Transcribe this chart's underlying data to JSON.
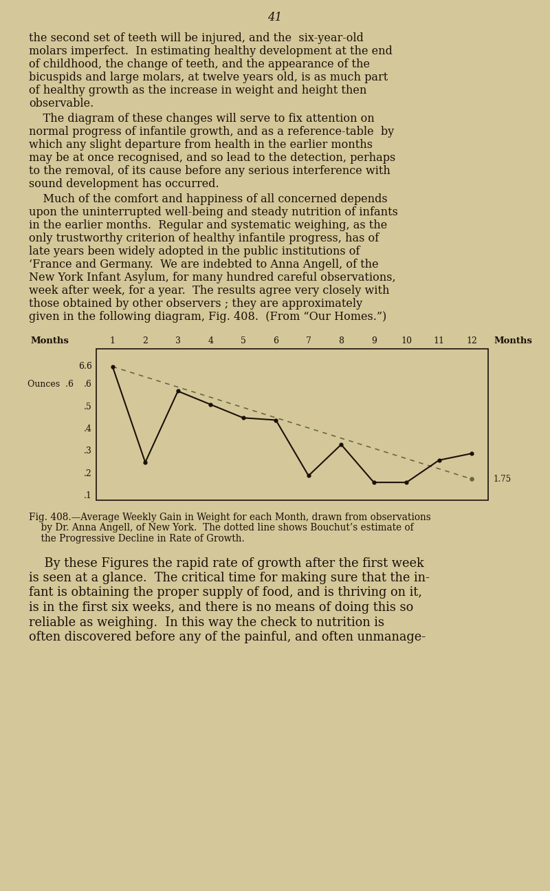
{
  "page_number": "41",
  "background_color": "#d4c89a",
  "text_color": "#1a1008",
  "chart": {
    "solid_line_x": [
      1,
      2,
      3,
      4,
      5,
      6,
      7,
      8,
      9,
      10,
      11,
      12
    ],
    "solid_line_y": [
      0.68,
      0.25,
      0.57,
      0.51,
      0.45,
      0.44,
      0.19,
      0.33,
      0.16,
      0.16,
      0.26,
      0.29
    ],
    "dotted_line_x": [
      1,
      12
    ],
    "dotted_line_y": [
      0.68,
      0.175
    ],
    "ylim": [
      0.08,
      0.76
    ],
    "xlim": [
      0.5,
      12.5
    ],
    "grid_color": "#999977",
    "line_color": "#1a1008",
    "dotted_color": "#666644"
  }
}
